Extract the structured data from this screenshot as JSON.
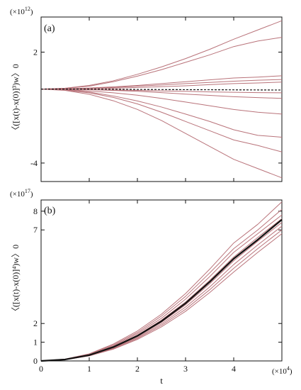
{
  "colors": {
    "trajectory": "#b9737a",
    "mean": "#111111",
    "axis": "#111111",
    "background": "#ffffff"
  },
  "chart_data": [
    {
      "type": "line",
      "panel_label": "(a)",
      "ylabel": "〈([x(t)-x(0)]³)w〉0",
      "multiplier": {
        "base": "(×10",
        "exp": "12",
        "close": ")"
      },
      "ylim": [
        -5.0,
        3.9
      ],
      "xlim": [
        0,
        5.0
      ],
      "yticks": [
        {
          "value": -4,
          "label": "-4"
        },
        {
          "value": 2,
          "label": "2"
        }
      ],
      "xticks": [
        0,
        1,
        2,
        3,
        4
      ],
      "grid": false,
      "series": [
        {
          "role": "trajectory",
          "x": [
            0,
            0.5,
            1,
            1.5,
            2,
            2.5,
            3,
            3.5,
            4,
            4.5,
            5.0
          ],
          "y": [
            0,
            0.05,
            0.2,
            0.45,
            0.8,
            1.2,
            1.65,
            2.15,
            2.7,
            3.2,
            3.7
          ]
        },
        {
          "role": "trajectory",
          "x": [
            0,
            0.5,
            1,
            1.5,
            2,
            2.5,
            3,
            3.5,
            4,
            4.5,
            5.0
          ],
          "y": [
            0,
            0.04,
            0.16,
            0.4,
            0.7,
            1.05,
            1.45,
            1.85,
            2.3,
            2.6,
            2.8
          ]
        },
        {
          "role": "trajectory",
          "x": [
            0,
            0.5,
            1,
            1.5,
            2,
            2.5,
            3,
            3.5,
            4,
            4.5,
            5.0
          ],
          "y": [
            0,
            0.02,
            0.06,
            0.12,
            0.2,
            0.3,
            0.4,
            0.5,
            0.6,
            0.65,
            0.72
          ]
        },
        {
          "role": "trajectory",
          "x": [
            0,
            0.5,
            1,
            1.5,
            2,
            2.5,
            3,
            3.5,
            4,
            4.5,
            5.0
          ],
          "y": [
            0,
            0.01,
            0.04,
            0.09,
            0.16,
            0.22,
            0.3,
            0.36,
            0.43,
            0.48,
            0.52
          ]
        },
        {
          "role": "trajectory",
          "x": [
            0,
            0.5,
            1,
            1.5,
            2,
            2.5,
            3,
            3.5,
            4,
            4.5,
            5.0
          ],
          "y": [
            0,
            0.01,
            0.03,
            0.05,
            0.09,
            0.13,
            0.18,
            0.24,
            0.3,
            0.33,
            0.38
          ]
        },
        {
          "role": "trajectory",
          "x": [
            0,
            0.5,
            1,
            1.5,
            2,
            2.5,
            3,
            3.5,
            4,
            4.5,
            5.0
          ],
          "y": [
            0,
            0.0,
            -0.02,
            -0.04,
            -0.07,
            -0.1,
            -0.12,
            -0.15,
            -0.17,
            -0.19,
            -0.2
          ]
        },
        {
          "role": "trajectory",
          "x": [
            0,
            0.5,
            1,
            1.5,
            2,
            2.5,
            3,
            3.5,
            4,
            4.5,
            5.0
          ],
          "y": [
            0,
            -0.01,
            -0.03,
            -0.07,
            -0.12,
            -0.19,
            -0.27,
            -0.34,
            -0.41,
            -0.46,
            -0.5
          ]
        },
        {
          "role": "trajectory",
          "x": [
            0,
            0.5,
            1,
            1.5,
            2,
            2.5,
            3,
            3.5,
            4,
            4.5,
            5.0
          ],
          "y": [
            0,
            -0.03,
            -0.1,
            -0.2,
            -0.33,
            -0.5,
            -0.7,
            -0.9,
            -1.1,
            -1.25,
            -1.35
          ]
        },
        {
          "role": "trajectory",
          "x": [
            0,
            0.5,
            1,
            1.5,
            2,
            2.5,
            3,
            3.5,
            4,
            4.5,
            5.0
          ],
          "y": [
            0,
            -0.04,
            -0.16,
            -0.37,
            -0.64,
            -0.97,
            -1.35,
            -1.75,
            -2.2,
            -2.5,
            -2.6
          ]
        },
        {
          "role": "trajectory",
          "x": [
            0,
            0.5,
            1,
            1.5,
            2,
            2.5,
            3,
            3.5,
            4,
            4.5,
            5.0
          ],
          "y": [
            0,
            -0.05,
            -0.2,
            -0.45,
            -0.8,
            -1.25,
            -1.75,
            -2.25,
            -2.75,
            -3.05,
            -3.4
          ]
        },
        {
          "role": "trajectory",
          "x": [
            0,
            0.5,
            1,
            1.5,
            2,
            2.5,
            3,
            3.5,
            4,
            4.5,
            5.0
          ],
          "y": [
            0,
            -0.07,
            -0.28,
            -0.63,
            -1.1,
            -1.7,
            -2.4,
            -3.1,
            -3.8,
            -4.3,
            -4.8
          ]
        },
        {
          "role": "mean",
          "dashed": true,
          "x": [
            0,
            1,
            2,
            3,
            4,
            5.0
          ],
          "y": [
            0,
            0.0,
            -0.02,
            -0.03,
            -0.04,
            -0.05
          ]
        }
      ]
    },
    {
      "type": "line",
      "panel_label": "(b)",
      "ylabel": "〈([x(t)-x(0)]⁴)w〉0",
      "xlabel": "t",
      "multiplier_y": {
        "base": "(×10",
        "exp": "17",
        "close": ")"
      },
      "multiplier_x": {
        "base": "(×10",
        "exp": "4",
        "close": ")"
      },
      "ylim": [
        0,
        8.6
      ],
      "xlim": [
        0,
        5.0
      ],
      "yticks": [
        {
          "value": 0,
          "label": "0"
        },
        {
          "value": 1,
          "label": "1"
        },
        {
          "value": 2,
          "label": "2"
        },
        {
          "value": 7,
          "label": "7"
        },
        {
          "value": 8,
          "label": "8"
        }
      ],
      "xticks": [
        {
          "value": 0,
          "label": "0"
        },
        {
          "value": 1,
          "label": "1"
        },
        {
          "value": 2,
          "label": "2"
        },
        {
          "value": 3,
          "label": "3"
        },
        {
          "value": 4,
          "label": "4"
        }
      ],
      "grid": false,
      "curve_note": "y grows roughly as t^2",
      "series": [
        {
          "role": "trajectory",
          "x": [
            0,
            0.5,
            1,
            1.5,
            2,
            2.5,
            3,
            3.5,
            4,
            4.5,
            5.0
          ],
          "y": [
            0,
            0.1,
            0.38,
            0.9,
            1.6,
            2.5,
            3.6,
            4.9,
            6.3,
            7.3,
            8.5
          ]
        },
        {
          "role": "trajectory",
          "x": [
            0,
            0.5,
            1,
            1.5,
            2,
            2.5,
            3,
            3.5,
            4,
            4.5,
            5.0
          ],
          "y": [
            0,
            0.09,
            0.36,
            0.85,
            1.52,
            2.4,
            3.45,
            4.7,
            6.0,
            7.0,
            8.1
          ]
        },
        {
          "role": "trajectory",
          "x": [
            0,
            0.5,
            1,
            1.5,
            2,
            2.5,
            3,
            3.5,
            4,
            4.5,
            5.0
          ],
          "y": [
            0,
            0.085,
            0.34,
            0.8,
            1.45,
            2.28,
            3.3,
            4.5,
            5.8,
            6.8,
            7.8
          ]
        },
        {
          "role": "trajectory",
          "x": [
            0,
            0.5,
            1,
            1.5,
            2,
            2.5,
            3,
            3.5,
            4,
            4.5,
            5.0
          ],
          "y": [
            0,
            0.08,
            0.32,
            0.76,
            1.38,
            2.18,
            3.15,
            4.3,
            5.55,
            6.6,
            7.6
          ]
        },
        {
          "role": "trajectory",
          "x": [
            0,
            0.5,
            1,
            1.5,
            2,
            2.5,
            3,
            3.5,
            4,
            4.5,
            5.0
          ],
          "y": [
            0,
            0.075,
            0.3,
            0.72,
            1.3,
            2.06,
            3.0,
            4.12,
            5.35,
            6.4,
            7.4
          ]
        },
        {
          "role": "trajectory",
          "x": [
            0,
            0.5,
            1,
            1.5,
            2,
            2.5,
            3,
            3.5,
            4,
            4.5,
            5.0
          ],
          "y": [
            0,
            0.07,
            0.29,
            0.69,
            1.25,
            1.98,
            2.88,
            3.95,
            5.15,
            6.2,
            7.2
          ]
        },
        {
          "role": "trajectory",
          "x": [
            0,
            0.5,
            1,
            1.5,
            2,
            2.5,
            3,
            3.5,
            4,
            4.5,
            5.0
          ],
          "y": [
            0,
            0.068,
            0.28,
            0.66,
            1.2,
            1.9,
            2.76,
            3.8,
            4.95,
            6.0,
            7.0
          ]
        },
        {
          "role": "trajectory",
          "x": [
            0,
            0.5,
            1,
            1.5,
            2,
            2.5,
            3,
            3.5,
            4,
            4.5,
            5.0
          ],
          "y": [
            0,
            0.065,
            0.27,
            0.63,
            1.15,
            1.82,
            2.65,
            3.65,
            4.75,
            5.8,
            6.8
          ]
        },
        {
          "role": "mean",
          "x": [
            0,
            0.5,
            1,
            1.5,
            2,
            2.5,
            3,
            3.5,
            4,
            4.5,
            5.0
          ],
          "y": [
            0,
            0.077,
            0.31,
            0.74,
            1.34,
            2.12,
            3.08,
            4.22,
            5.46,
            6.48,
            7.55
          ]
        }
      ]
    }
  ]
}
